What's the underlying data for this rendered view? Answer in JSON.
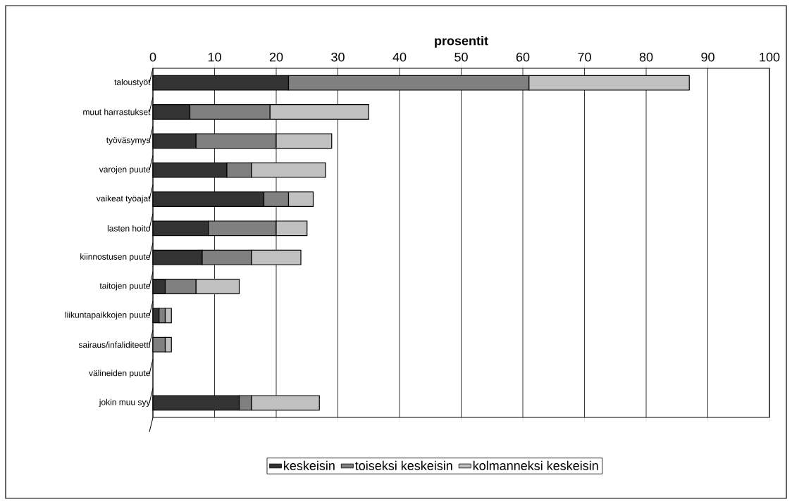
{
  "chart_data": {
    "type": "bar",
    "orientation": "horizontal",
    "stacked": true,
    "xlabel": "prosentit",
    "categories": [
      "taloustyöt",
      "muut harrastukset",
      "työväsymys",
      "varojen puute",
      "vaikeat työajat",
      "lasten hoito",
      "kiinnostusen puute",
      "taitojen puute",
      "liikuntapaikkojen puute",
      "sairaus/infaliditeetti",
      "välineiden puute",
      "jokin muu syy"
    ],
    "series": [
      {
        "name": "keskeisin",
        "color": "#333333",
        "values": [
          22,
          6,
          7,
          12,
          18,
          9,
          8,
          2,
          1,
          0,
          0,
          14
        ]
      },
      {
        "name": "toiseksi keskeisin",
        "color": "#808080",
        "values": [
          39,
          13,
          13,
          4,
          4,
          11,
          8,
          5,
          1,
          2,
          0,
          2
        ]
      },
      {
        "name": "kolmanneksi keskeisin",
        "color": "#c0c0c0",
        "values": [
          26,
          16,
          9,
          12,
          4,
          5,
          8,
          7,
          1,
          1,
          0,
          11
        ]
      }
    ],
    "xlim": [
      0,
      100
    ],
    "xticks": [
      0,
      10,
      20,
      30,
      40,
      50,
      60,
      70,
      80,
      90,
      100
    ],
    "grid": "x",
    "legend": "bottom"
  }
}
